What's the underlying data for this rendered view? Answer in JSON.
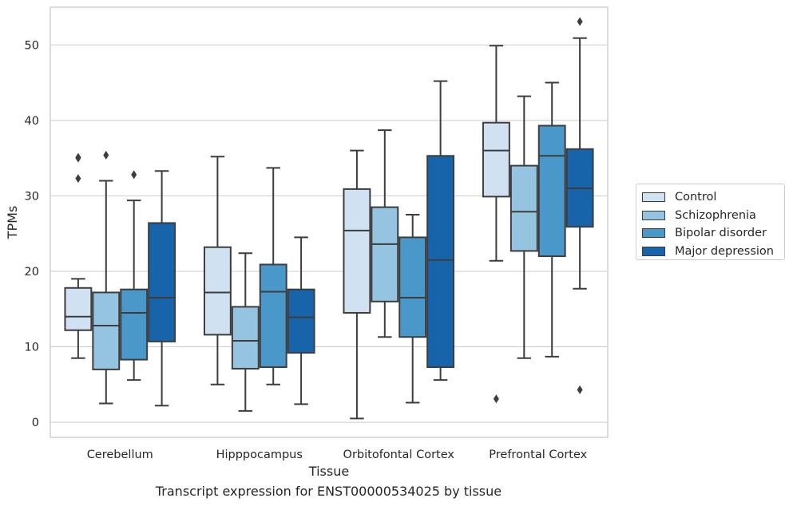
{
  "caption": "Transcript expression for ENST00000534025 by tissue",
  "chart_data": {
    "type": "box",
    "title": "",
    "xlabel": "Tissue",
    "ylabel": "TPMs",
    "ylim": [
      -2,
      55
    ],
    "yticks": [
      0,
      10,
      20,
      30,
      40,
      50
    ],
    "grid": true,
    "legend_position": "right",
    "categories": [
      "Cerebellum",
      "Hipppocampus",
      "Orbitofontal Cortex",
      "Prefrontal Cortex"
    ],
    "series": [
      {
        "name": "Control",
        "color": "#d0e1f2",
        "boxes": [
          {
            "whislo": 8.5,
            "q1": 12.2,
            "med": 14.0,
            "q3": 17.8,
            "whishi": 19.0,
            "fliers": [
              32.3,
              35.0,
              35.1
            ]
          },
          {
            "whislo": 5.0,
            "q1": 11.6,
            "med": 17.2,
            "q3": 23.2,
            "whishi": 35.2,
            "fliers": []
          },
          {
            "whislo": 0.5,
            "q1": 14.5,
            "med": 25.4,
            "q3": 30.9,
            "whishi": 36.0,
            "fliers": []
          },
          {
            "whislo": 21.4,
            "q1": 29.9,
            "med": 36.0,
            "q3": 39.7,
            "whishi": 49.9,
            "fliers": [
              3.1
            ]
          }
        ]
      },
      {
        "name": "Schizophrenia",
        "color": "#94c4df",
        "boxes": [
          {
            "whislo": 2.5,
            "q1": 7.0,
            "med": 12.8,
            "q3": 17.2,
            "whishi": 32.0,
            "fliers": [
              35.4
            ]
          },
          {
            "whislo": 1.5,
            "q1": 7.1,
            "med": 10.8,
            "q3": 15.3,
            "whishi": 22.4,
            "fliers": []
          },
          {
            "whislo": 11.3,
            "q1": 16.0,
            "med": 23.6,
            "q3": 28.5,
            "whishi": 38.7,
            "fliers": []
          },
          {
            "whislo": 8.5,
            "q1": 22.7,
            "med": 27.9,
            "q3": 34.0,
            "whishi": 43.2,
            "fliers": []
          }
        ]
      },
      {
        "name": "Bipolar disorder",
        "color": "#4a98c9",
        "boxes": [
          {
            "whislo": 5.6,
            "q1": 8.3,
            "med": 14.5,
            "q3": 17.6,
            "whishi": 29.4,
            "fliers": [
              32.8
            ]
          },
          {
            "whislo": 5.0,
            "q1": 7.3,
            "med": 17.3,
            "q3": 20.9,
            "whishi": 33.7,
            "fliers": []
          },
          {
            "whislo": 2.6,
            "q1": 11.3,
            "med": 16.5,
            "q3": 24.5,
            "whishi": 27.5,
            "fliers": []
          },
          {
            "whislo": 8.7,
            "q1": 22.0,
            "med": 35.3,
            "q3": 39.3,
            "whishi": 45.0,
            "fliers": []
          }
        ]
      },
      {
        "name": "Major depression",
        "color": "#1764ab",
        "boxes": [
          {
            "whislo": 2.2,
            "q1": 10.7,
            "med": 16.5,
            "q3": 26.4,
            "whishi": 33.3,
            "fliers": []
          },
          {
            "whislo": 2.4,
            "q1": 9.2,
            "med": 13.9,
            "q3": 17.6,
            "whishi": 24.5,
            "fliers": []
          },
          {
            "whislo": 5.6,
            "q1": 7.3,
            "med": 21.5,
            "q3": 35.3,
            "whishi": 45.2,
            "fliers": []
          },
          {
            "whislo": 17.7,
            "q1": 25.9,
            "med": 31.0,
            "q3": 36.2,
            "whishi": 50.9,
            "fliers": [
              4.3,
              53.1
            ]
          }
        ]
      }
    ]
  }
}
